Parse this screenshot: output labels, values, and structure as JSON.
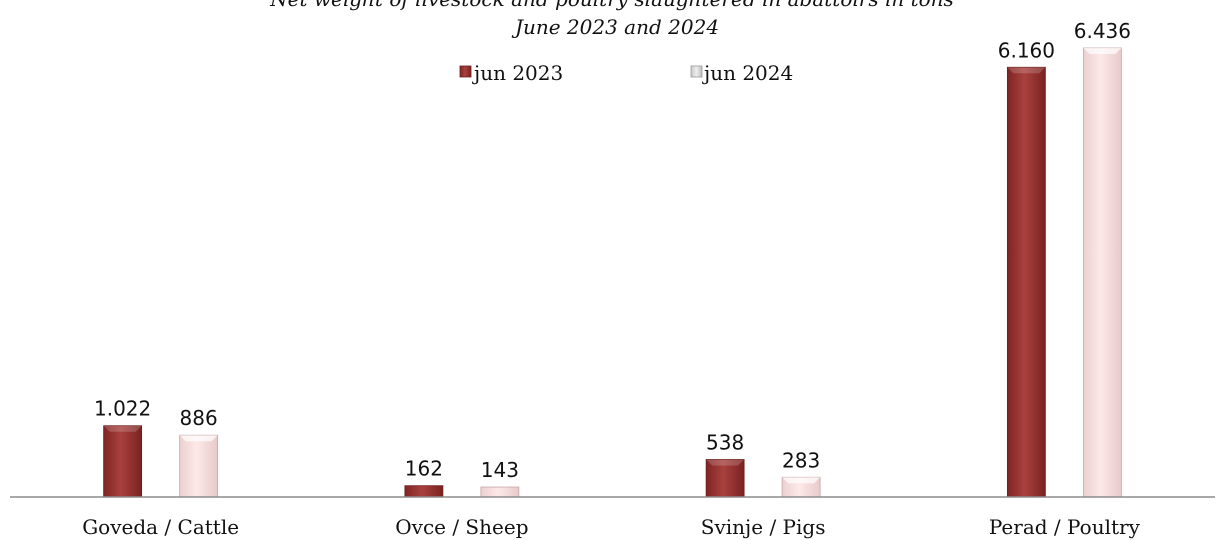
{
  "chart_data": {
    "type": "bar",
    "title": "Net weight of livestock and poultry slaughtered in abattoirs in tons",
    "subtitle": "June 2023 and 2024",
    "xlabel": "",
    "ylabel": "",
    "ylim": [
      0,
      6800
    ],
    "grid": false,
    "legend_position": "top-center",
    "categories": [
      "Goveda / Cattle",
      "Ovce / Sheep",
      "Svinje / Pigs",
      "Perad / Poultry"
    ],
    "series": [
      {
        "name": "jun 2023",
        "values": [
          1022,
          162,
          538,
          6160
        ],
        "labels": [
          "1.022",
          "162",
          "538",
          "6.160"
        ],
        "color": "#9e3533"
      },
      {
        "name": "jun 2024",
        "values": [
          886,
          143,
          283,
          6436
        ],
        "labels": [
          "886",
          "143",
          "283",
          "6.436"
        ],
        "color": "#f8dada"
      }
    ]
  }
}
